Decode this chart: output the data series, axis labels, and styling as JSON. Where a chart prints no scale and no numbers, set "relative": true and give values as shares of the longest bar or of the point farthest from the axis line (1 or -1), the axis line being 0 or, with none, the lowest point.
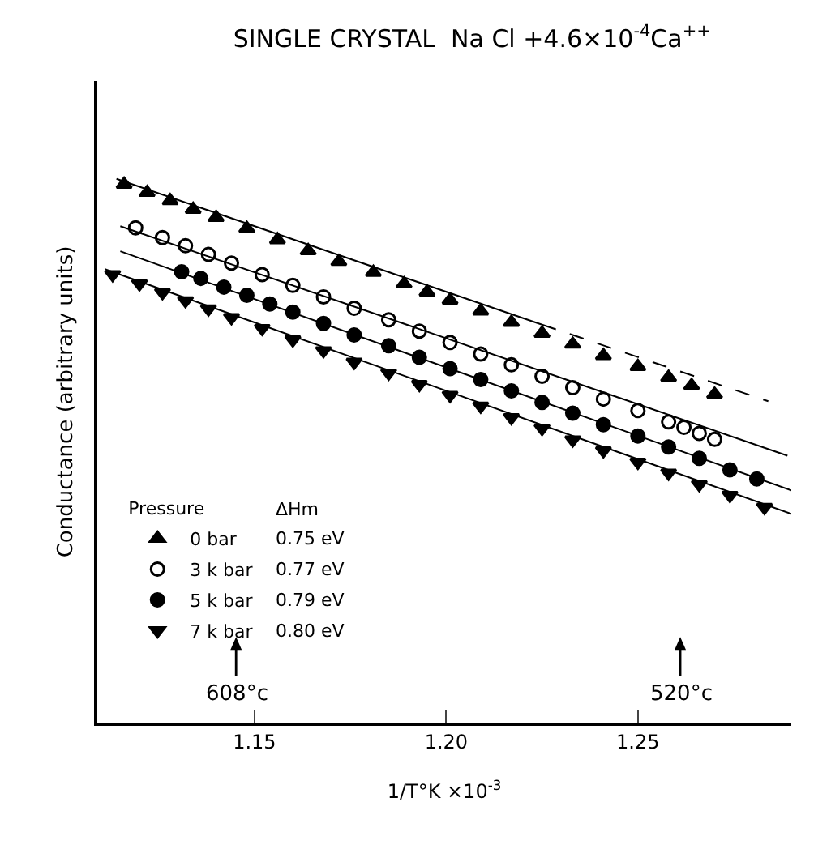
{
  "chart_data": {
    "type": "scatter",
    "relative": true,
    "title": "SINGLE CRYSTAL  Na Cl +4.6×10$^{-4}$Ca$^{++}$",
    "xlabel": "1/T°K ×10$^{-3}$",
    "ylabel": "Conductance (arbitrary units)",
    "legend_title": "Pressure",
    "legend": "bottom left",
    "grid": false,
    "tick_labels": "x",
    "xlim": [
      1.109,
      1.29
    ],
    "xticks": [
      1.15,
      {
        "value": 1.2,
        "label": "1.20"
      },
      1.25
    ],
    "annotations": [
      "ΔHm",
      "0.75 eV",
      "0.77 eV",
      "0.79 eV",
      "0.80 eV",
      "608°c",
      "520°c"
    ],
    "series": [
      {
        "name": "0 bar",
        "type": "scatter",
        "marker": "triangle",
        "color": "#000000",
        "x": [
          1.116,
          1.122,
          1.128,
          1.134,
          1.14,
          1.148,
          1.156,
          1.164,
          1.172,
          1.181,
          1.189,
          1.195,
          1.201,
          1.209,
          1.217,
          1.225,
          1.233,
          1.241,
          1.25,
          1.258,
          1.264,
          1.27
        ],
        "values": [
          0.99,
          0.975,
          0.96,
          0.944,
          0.929,
          0.909,
          0.888,
          0.868,
          0.848,
          0.828,
          0.807,
          0.792,
          0.777,
          0.757,
          0.736,
          0.716,
          0.696,
          0.675,
          0.655,
          0.635,
          0.62,
          0.604
        ]
      },
      {
        "name": "3 k bar",
        "type": "scatter",
        "marker": "circle-open",
        "color": "#000000",
        "x": [
          1.119,
          1.126,
          1.132,
          1.138,
          1.144,
          1.152,
          1.16,
          1.168,
          1.176,
          1.185,
          1.193,
          1.201,
          1.209,
          1.217,
          1.225,
          1.233,
          1.241,
          1.25,
          1.258,
          1.262,
          1.266,
          1.27
        ],
        "values": [
          0.91,
          0.892,
          0.877,
          0.861,
          0.845,
          0.824,
          0.804,
          0.783,
          0.762,
          0.741,
          0.72,
          0.699,
          0.678,
          0.658,
          0.637,
          0.616,
          0.595,
          0.574,
          0.553,
          0.543,
          0.532,
          0.521
        ]
      },
      {
        "name": "5 k bar",
        "type": "scatter",
        "marker": "circle",
        "color": "#000000",
        "x": [
          1.131,
          1.136,
          1.142,
          1.148,
          1.154,
          1.16,
          1.168,
          1.176,
          1.185,
          1.193,
          1.201,
          1.209,
          1.217,
          1.225,
          1.233,
          1.241,
          1.25,
          1.258,
          1.266,
          1.274,
          1.281
        ],
        "values": [
          0.829,
          0.817,
          0.801,
          0.786,
          0.77,
          0.755,
          0.734,
          0.713,
          0.693,
          0.672,
          0.651,
          0.631,
          0.61,
          0.589,
          0.569,
          0.548,
          0.527,
          0.507,
          0.486,
          0.465,
          0.448
        ]
      },
      {
        "name": "7 k bar",
        "type": "scatter",
        "marker": "triangle-down",
        "color": "#000000",
        "x": [
          1.113,
          1.12,
          1.126,
          1.132,
          1.138,
          1.144,
          1.152,
          1.16,
          1.168,
          1.176,
          1.185,
          1.193,
          1.201,
          1.209,
          1.217,
          1.225,
          1.233,
          1.241,
          1.25,
          1.258,
          1.266,
          1.274,
          1.283
        ],
        "values": [
          0.824,
          0.807,
          0.791,
          0.776,
          0.761,
          0.745,
          0.725,
          0.704,
          0.684,
          0.663,
          0.643,
          0.622,
          0.602,
          0.582,
          0.561,
          0.541,
          0.52,
          0.5,
          0.479,
          0.459,
          0.438,
          0.418,
          0.396
        ]
      },
      {
        "type": "line",
        "line_style": "solid",
        "color": "#000000",
        "x": [
          1.114,
          1.225
        ],
        "values": [
          1.0,
          0.732
        ]
      },
      {
        "type": "line",
        "line_style": "dashed",
        "color": "#000000",
        "x": [
          1.225,
          1.284
        ],
        "values": [
          0.732,
          0.591
        ]
      },
      {
        "type": "line",
        "line_style": "solid",
        "color": "#000000",
        "x": [
          1.115,
          1.289
        ],
        "values": [
          0.913,
          0.491
        ]
      },
      {
        "type": "line",
        "line_style": "solid",
        "color": "#000000",
        "x": [
          1.115,
          1.29
        ],
        "values": [
          0.867,
          0.427
        ]
      },
      {
        "type": "line",
        "line_style": "solid",
        "color": "#000000",
        "x": [
          1.111,
          1.29
        ],
        "values": [
          0.834,
          0.384
        ]
      }
    ]
  }
}
